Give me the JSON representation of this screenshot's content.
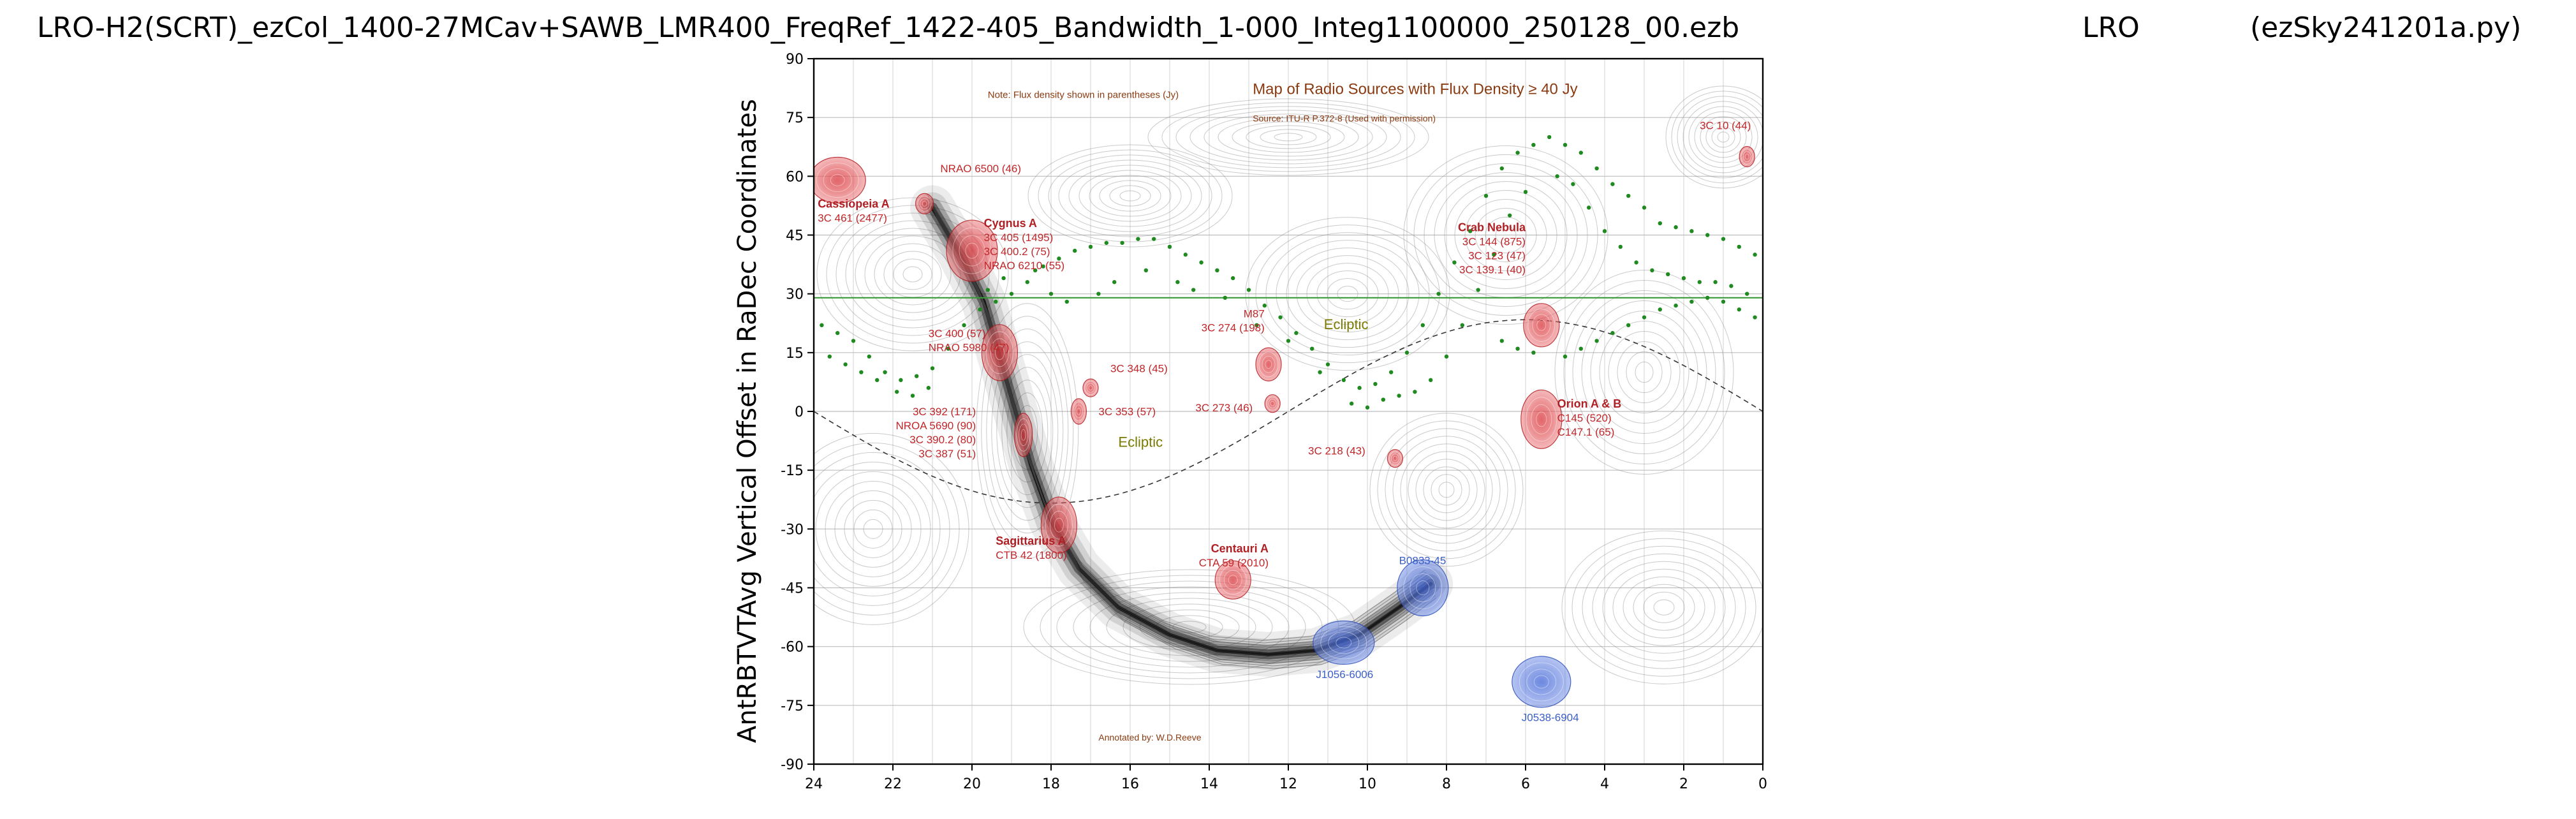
{
  "titles": {
    "main": "LRO-H2(SCRT)_ezCol_1400-27MCav+SAWB_LMR400_FreqRef_1422-405_Bandwidth_1-000_Integ1100000_250128_00.ezb",
    "site": "LRO",
    "program": "(ezSky241201a.py)"
  },
  "chart_data": {
    "type": "scatter",
    "ylabel": "AntRBTVTAvg Vertical Offset in RaDec Coordinates",
    "xlabel": "",
    "xlim": [
      24,
      0
    ],
    "ylim": [
      -90,
      90
    ],
    "x_reversed": true,
    "grid": true,
    "x_ticks": [
      "24",
      "22",
      "20",
      "18",
      "16",
      "14",
      "12",
      "10",
      "8",
      "6",
      "4",
      "2",
      "0"
    ],
    "y_ticks": [
      "90",
      "75",
      "60",
      "45",
      "30",
      "15",
      "0",
      "-15",
      "-30",
      "-45",
      "-60",
      "-75",
      "-90"
    ],
    "reference_line_dec": 29,
    "background_map": {
      "note": "Note: Flux density shown in parentheses (Jy)",
      "heading": "Map of Radio Sources with Flux Density ≥ 40 Jy",
      "source": "Source: ITU-R P.372-8 (Used with permission)",
      "credit": "Annotated by: W.D.Reeve",
      "ecliptic_label": "Ecliptic"
    },
    "sources": [
      {
        "ra": 23.4,
        "dec": 59,
        "label": [
          "Cassiopeia A",
          "3C 461 (2477)"
        ],
        "color": "red"
      },
      {
        "ra": 21.2,
        "dec": 53,
        "label": [
          "NRAO 6500 (46)"
        ],
        "color": "red"
      },
      {
        "ra": 20.0,
        "dec": 41,
        "label": [
          "Cygnus A",
          "3C 405 (1495)",
          "3C 400.2 (75)",
          "NRAO 6210 (55)"
        ],
        "color": "red"
      },
      {
        "ra": 19.3,
        "dec": 15,
        "label": [
          "3C 400 (57)",
          "NRAO 5980 (47)"
        ],
        "color": "red"
      },
      {
        "ra": 18.7,
        "dec": -6,
        "label": [
          "3C 392 (171)",
          "NROA 5690 (90)",
          "3C 390.2 (80)",
          "3C 387 (51)"
        ],
        "color": "red"
      },
      {
        "ra": 17.8,
        "dec": -29,
        "label": [
          "Sagittarius A",
          "CTB 42 (1800)"
        ],
        "color": "red"
      },
      {
        "ra": 17.0,
        "dec": 6,
        "label": [
          "3C 348 (45)"
        ],
        "color": "red"
      },
      {
        "ra": 17.3,
        "dec": 0,
        "label": [
          "3C 353 (57)"
        ],
        "color": "red"
      },
      {
        "ra": 12.5,
        "dec": 12,
        "label": [
          "M87",
          "3C 274 (198)"
        ],
        "color": "red"
      },
      {
        "ra": 12.4,
        "dec": 2,
        "label": [
          "3C 273 (46)"
        ],
        "color": "red"
      },
      {
        "ra": 9.3,
        "dec": -12,
        "label": [
          "3C 218 (43)"
        ],
        "color": "red"
      },
      {
        "ra": 13.4,
        "dec": -43,
        "label": [
          "Centauri A",
          "CTA 59 (2010)"
        ],
        "color": "red"
      },
      {
        "ra": 5.6,
        "dec": 22,
        "label": [
          "Crab Nebula",
          "3C 144 (875)",
          "3C 123 (47)",
          "3C 139.1 (40)"
        ],
        "color": "red"
      },
      {
        "ra": 5.6,
        "dec": -2,
        "label": [
          "Orion A & B",
          "C145 (520)",
          "C147.1 (65)"
        ],
        "color": "red"
      },
      {
        "ra": 0.4,
        "dec": 65,
        "label": [
          "3C 10 (44)"
        ],
        "color": "red"
      },
      {
        "ra": 8.6,
        "dec": -45,
        "label": [
          "B0833-45"
        ],
        "color": "blue"
      },
      {
        "ra": 10.6,
        "dec": -59,
        "label": [
          "J1056-6006"
        ],
        "color": "blue"
      },
      {
        "ra": 5.6,
        "dec": -69,
        "label": [
          "J0538-6904"
        ],
        "color": "blue"
      }
    ],
    "galactic_plane_points": [
      [
        23.8,
        22
      ],
      [
        23.4,
        20
      ],
      [
        23.0,
        18
      ],
      [
        22.6,
        14
      ],
      [
        22.2,
        10
      ],
      [
        21.8,
        8
      ],
      [
        21.4,
        9
      ],
      [
        21.0,
        11
      ],
      [
        20.6,
        16
      ],
      [
        20.2,
        22
      ],
      [
        19.8,
        26
      ],
      [
        19.4,
        28
      ],
      [
        19.0,
        30
      ],
      [
        18.6,
        33
      ],
      [
        18.2,
        37
      ],
      [
        17.8,
        39
      ],
      [
        17.4,
        41
      ],
      [
        17.0,
        42
      ],
      [
        16.6,
        43
      ],
      [
        16.2,
        43
      ],
      [
        15.8,
        44
      ],
      [
        15.4,
        44
      ],
      [
        15.0,
        42
      ],
      [
        14.6,
        40
      ],
      [
        14.2,
        38
      ],
      [
        13.8,
        36
      ],
      [
        13.4,
        34
      ],
      [
        13.0,
        31
      ],
      [
        12.6,
        27
      ],
      [
        12.2,
        24
      ],
      [
        11.8,
        20
      ],
      [
        11.4,
        16
      ],
      [
        11.0,
        12
      ],
      [
        10.6,
        8
      ],
      [
        10.2,
        6
      ],
      [
        9.8,
        7
      ],
      [
        9.4,
        10
      ],
      [
        9.0,
        15
      ],
      [
        8.6,
        22
      ],
      [
        8.2,
        30
      ],
      [
        7.8,
        38
      ],
      [
        7.4,
        46
      ],
      [
        7.0,
        55
      ],
      [
        6.6,
        62
      ],
      [
        6.2,
        66
      ],
      [
        5.8,
        68
      ],
      [
        5.4,
        70
      ],
      [
        5.0,
        68
      ],
      [
        4.6,
        66
      ],
      [
        4.2,
        62
      ],
      [
        3.8,
        58
      ],
      [
        3.4,
        55
      ],
      [
        3.0,
        52
      ],
      [
        2.6,
        48
      ],
      [
        2.2,
        47
      ],
      [
        1.8,
        46
      ],
      [
        1.4,
        45
      ],
      [
        1.0,
        44
      ],
      [
        0.6,
        42
      ],
      [
        0.2,
        40
      ],
      [
        23.6,
        14
      ],
      [
        23.2,
        12
      ],
      [
        22.8,
        10
      ],
      [
        22.4,
        8
      ],
      [
        21.9,
        5
      ],
      [
        21.5,
        4
      ],
      [
        21.1,
        6
      ],
      [
        19.6,
        31
      ],
      [
        19.2,
        34
      ],
      [
        18.4,
        36
      ],
      [
        18.0,
        30
      ],
      [
        17.6,
        28
      ],
      [
        16.8,
        30
      ],
      [
        16.4,
        33
      ],
      [
        15.6,
        36
      ],
      [
        14.8,
        33
      ],
      [
        14.4,
        31
      ],
      [
        13.6,
        29
      ],
      [
        12.8,
        22
      ],
      [
        12.0,
        18
      ],
      [
        11.2,
        10
      ],
      [
        10.4,
        2
      ],
      [
        10.0,
        1
      ],
      [
        9.6,
        3
      ],
      [
        9.2,
        4
      ],
      [
        8.8,
        5
      ],
      [
        8.4,
        8
      ],
      [
        8.0,
        14
      ],
      [
        7.6,
        22
      ],
      [
        7.2,
        31
      ],
      [
        6.8,
        40
      ],
      [
        6.4,
        50
      ],
      [
        6.0,
        56
      ],
      [
        5.2,
        60
      ],
      [
        4.8,
        58
      ],
      [
        4.4,
        52
      ],
      [
        4.0,
        46
      ],
      [
        3.6,
        42
      ],
      [
        3.2,
        38
      ],
      [
        2.8,
        36
      ],
      [
        2.4,
        35
      ],
      [
        2.0,
        34
      ],
      [
        1.6,
        33
      ],
      [
        1.2,
        33
      ],
      [
        0.8,
        32
      ],
      [
        0.4,
        30
      ],
      [
        6.6,
        18
      ],
      [
        6.2,
        16
      ],
      [
        5.8,
        15
      ],
      [
        5.0,
        14
      ],
      [
        4.6,
        16
      ],
      [
        4.2,
        18
      ],
      [
        3.8,
        20
      ],
      [
        3.4,
        22
      ],
      [
        3.0,
        24
      ],
      [
        2.6,
        26
      ],
      [
        2.2,
        27
      ],
      [
        1.8,
        28
      ],
      [
        1.4,
        29
      ],
      [
        1.0,
        28
      ],
      [
        0.6,
        26
      ],
      [
        0.2,
        24
      ]
    ]
  }
}
